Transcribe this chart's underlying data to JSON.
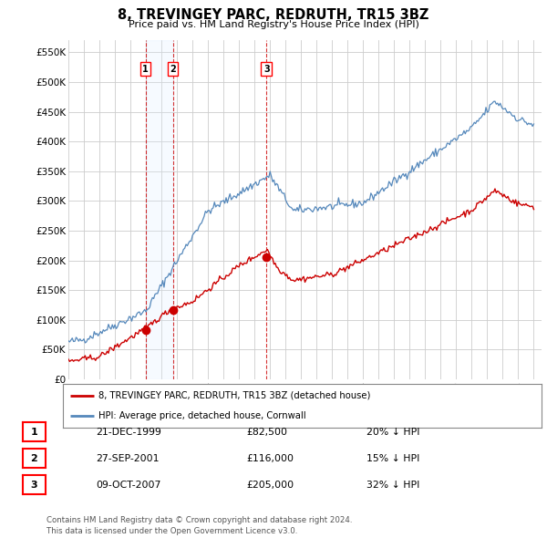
{
  "title": "8, TREVINGEY PARC, REDRUTH, TR15 3BZ",
  "subtitle": "Price paid vs. HM Land Registry's House Price Index (HPI)",
  "ylabel_ticks": [
    "£0",
    "£50K",
    "£100K",
    "£150K",
    "£200K",
    "£250K",
    "£300K",
    "£350K",
    "£400K",
    "£450K",
    "£500K",
    "£550K"
  ],
  "ytick_values": [
    0,
    50000,
    100000,
    150000,
    200000,
    250000,
    300000,
    350000,
    400000,
    450000,
    500000,
    550000
  ],
  "xmin": 1995.0,
  "xmax": 2025.5,
  "ymin": 0,
  "ymax": 570000,
  "sale_color": "#cc0000",
  "hpi_color": "#5588bb",
  "hpi_fill_color": "#ddeeff",
  "transactions": [
    {
      "num": 1,
      "date": "21-DEC-1999",
      "year": 1999.97,
      "price": 82500,
      "hpi_note": "20% ↓ HPI"
    },
    {
      "num": 2,
      "date": "27-SEP-2001",
      "year": 2001.74,
      "price": 116000,
      "hpi_note": "15% ↓ HPI"
    },
    {
      "num": 3,
      "date": "09-OCT-2007",
      "year": 2007.77,
      "price": 205000,
      "hpi_note": "32% ↓ HPI"
    }
  ],
  "legend_sale_label": "8, TREVINGEY PARC, REDRUTH, TR15 3BZ (detached house)",
  "legend_hpi_label": "HPI: Average price, detached house, Cornwall",
  "footnote": "Contains HM Land Registry data © Crown copyright and database right 2024.\nThis data is licensed under the Open Government Licence v3.0.",
  "background_color": "#ffffff",
  "grid_color": "#cccccc"
}
